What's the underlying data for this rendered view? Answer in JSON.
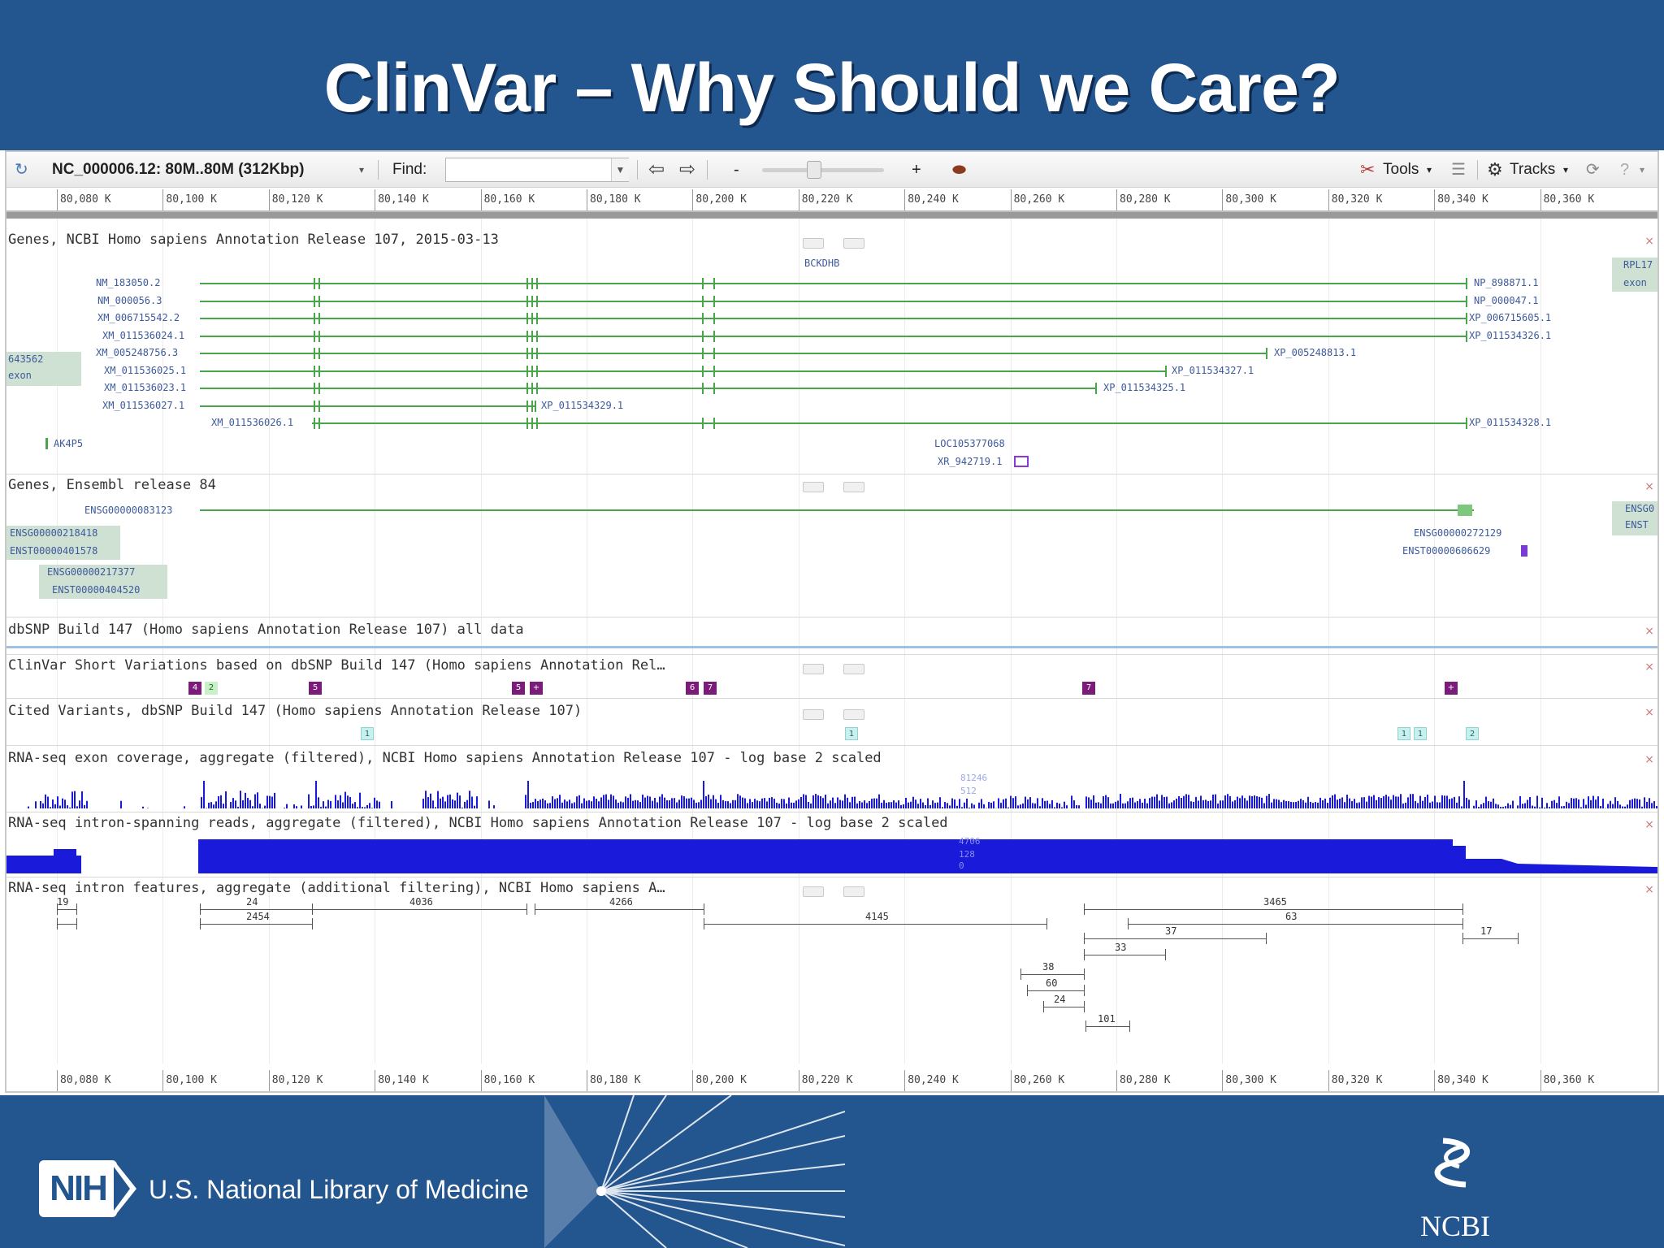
{
  "slide": {
    "title": "ClinVar – Why Should we Care?",
    "footer_org": "U.S. National Library of Medicine",
    "footer_nih": "NIH",
    "footer_ncbi": "NCBI"
  },
  "toolbar": {
    "location": "NC_000006.12: 80M..80M (312Kbp)",
    "find_label": "Find:",
    "find_value": "",
    "zoom_out": "-",
    "zoom_in": "+",
    "tools_label": "Tools",
    "tracks_label": "Tracks"
  },
  "ruler_ticks": [
    "80,080 K",
    "80,100 K",
    "80,120 K",
    "80,140 K",
    "80,160 K",
    "80,180 K",
    "80,200 K",
    "80,220 K",
    "80,240 K",
    "80,260 K",
    "80,280 K",
    "80,300 K",
    "80,320 K",
    "80,340 K",
    "80,360 K"
  ],
  "tracks": {
    "ncbi_genes": {
      "title": "Genes, NCBI Homo sapiens Annotation Release 107, 2015-03-13",
      "gene_name": "BCKDHB",
      "transcripts_left": [
        "NM_183050.2",
        "NM_000056.3",
        "XM_006715542.2",
        "XM_011536024.1",
        "XM_005248756.3",
        "XM_011536025.1",
        "XM_011536023.1",
        "XM_011536027.1",
        "XM_011536026.1"
      ],
      "proteins_right": [
        "NP_898871.1",
        "NP_000047.1",
        "XP_006715605.1",
        "XP_011534326.1",
        "XP_005248813.1",
        "XP_011534327.1",
        "XP_011534325.1",
        "XP_011534329.1",
        "XP_011534328.1"
      ],
      "left_box": [
        "643562",
        "exon"
      ],
      "right_box": [
        "RPL17",
        "exon"
      ],
      "aux_gene": "AK4P5",
      "loc_gene": "LOC105377068",
      "loc_tx": "XR_942719.1"
    },
    "ensembl": {
      "title": "Genes, Ensembl release 84",
      "main": "ENSG00000083123",
      "left1": [
        "ENSG00000218418",
        "ENST00000401578"
      ],
      "left2": [
        "ENSG00000217377",
        "ENST00000404520"
      ],
      "right": [
        "ENSG00000272129",
        "ENST00000606629"
      ],
      "right_box": [
        "ENSG0",
        "ENST"
      ]
    },
    "dbsnp": {
      "title": "dbSNP Build 147 (Homo sapiens Annotation Release 107) all data"
    },
    "clinvar": {
      "title": "ClinVar Short Variations based on dbSNP Build 147 (Homo sapiens Annotation Rel…",
      "marks": [
        "4",
        "2",
        "5",
        "5",
        "+",
        "6",
        "7",
        "7",
        "+"
      ]
    },
    "cited": {
      "title": "Cited Variants, dbSNP Build 147 (Homo sapiens Annotation Release 107)",
      "marks": [
        "1",
        "1",
        "1",
        "1",
        "2"
      ]
    },
    "rnaseq_exon": {
      "title": "RNA-seq exon coverage, aggregate (filtered), NCBI Homo sapiens Annotation Release 107 - log base 2 scaled",
      "scale_top": "81246",
      "scale_mid": "512"
    },
    "rnaseq_intron": {
      "title": "RNA-seq intron-spanning reads, aggregate (filtered), NCBI Homo sapiens Annotation Release 107 - log base 2 scaled",
      "scale_top": "4706",
      "scale_mid": "128",
      "scale_zero": "0"
    },
    "intron_features": {
      "title": "RNA-seq intron features, aggregate (additional filtering), NCBI Homo sapiens A…",
      "labels": [
        "19",
        "24",
        "2454",
        "4036",
        "4266",
        "4145",
        "3465",
        "63",
        "37",
        "33",
        "17",
        "38",
        "60",
        "24",
        "101"
      ]
    }
  },
  "colors": {
    "header_bg": "#23558f",
    "gene_green": "#4aa54a",
    "clinvar_purple": "#7b1c7b",
    "coverage_blue": "#1a1adb"
  }
}
